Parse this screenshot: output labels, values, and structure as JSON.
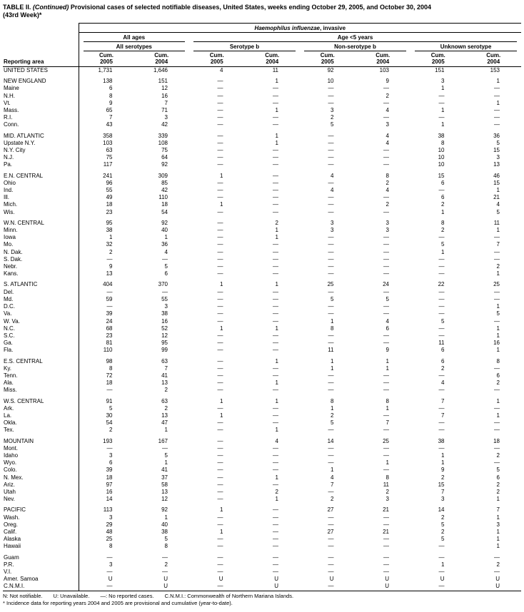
{
  "title": {
    "label": "TABLE II.",
    "continued": " (Continued) ",
    "rest": "Provisional cases of selected notifiable diseases, United States, weeks ending October 29, 2005, and October 30, 2004",
    "week": "(43rd Week)*"
  },
  "header": {
    "stub_label": "Reporting area",
    "disease_italic": "Haemophilus influenzae",
    "disease_rest": ", invasive",
    "all_ages": "All ages",
    "age_lt5": "Age <5 years",
    "all_serotypes": "All serotypes",
    "serotype_b": "Serotype b",
    "non_serotype_b": "Non-serotype b",
    "unknown_serotype": "Unknown serotype",
    "cum_label": "Cum.",
    "years": [
      "2005",
      "2004",
      "2005",
      "2004",
      "2005",
      "2004",
      "2005",
      "2004"
    ]
  },
  "table": {
    "groups": [
      {
        "rows": [
          [
            "UNITED STATES",
            "1,731",
            "1,646",
            "4",
            "11",
            "92",
            "103",
            "151",
            "153"
          ]
        ]
      },
      {
        "rows": [
          [
            "NEW ENGLAND",
            "138",
            "151",
            "—",
            "1",
            "10",
            "9",
            "3",
            "1"
          ],
          [
            "Maine",
            "6",
            "12",
            "—",
            "—",
            "—",
            "—",
            "1",
            "—"
          ],
          [
            "N.H.",
            "8",
            "16",
            "—",
            "—",
            "—",
            "2",
            "—",
            "—"
          ],
          [
            "Vt.",
            "9",
            "7",
            "—",
            "—",
            "—",
            "—",
            "—",
            "1"
          ],
          [
            "Mass.",
            "65",
            "71",
            "—",
            "1",
            "3",
            "4",
            "1",
            "—"
          ],
          [
            "R.I.",
            "7",
            "3",
            "—",
            "—",
            "2",
            "—",
            "—",
            "—"
          ],
          [
            "Conn.",
            "43",
            "42",
            "—",
            "—",
            "5",
            "3",
            "1",
            "—"
          ]
        ]
      },
      {
        "rows": [
          [
            "MID. ATLANTIC",
            "358",
            "339",
            "—",
            "1",
            "—",
            "4",
            "38",
            "36"
          ],
          [
            "Upstate N.Y.",
            "103",
            "108",
            "—",
            "1",
            "—",
            "4",
            "8",
            "5"
          ],
          [
            "N.Y. City",
            "63",
            "75",
            "—",
            "—",
            "—",
            "—",
            "10",
            "15"
          ],
          [
            "N.J.",
            "75",
            "64",
            "—",
            "—",
            "—",
            "—",
            "10",
            "3"
          ],
          [
            "Pa.",
            "117",
            "92",
            "—",
            "—",
            "—",
            "—",
            "10",
            "13"
          ]
        ]
      },
      {
        "rows": [
          [
            "E.N. CENTRAL",
            "241",
            "309",
            "1",
            "—",
            "4",
            "8",
            "15",
            "46"
          ],
          [
            "Ohio",
            "96",
            "85",
            "—",
            "—",
            "—",
            "2",
            "6",
            "15"
          ],
          [
            "Ind.",
            "55",
            "42",
            "—",
            "—",
            "4",
            "4",
            "—",
            "1"
          ],
          [
            "Ill.",
            "49",
            "110",
            "—",
            "—",
            "—",
            "—",
            "6",
            "21"
          ],
          [
            "Mich.",
            "18",
            "18",
            "1",
            "—",
            "—",
            "2",
            "2",
            "4"
          ],
          [
            "Wis.",
            "23",
            "54",
            "—",
            "—",
            "—",
            "—",
            "1",
            "5"
          ]
        ]
      },
      {
        "rows": [
          [
            "W.N. CENTRAL",
            "95",
            "92",
            "—",
            "2",
            "3",
            "3",
            "8",
            "11"
          ],
          [
            "Minn.",
            "38",
            "40",
            "—",
            "1",
            "3",
            "3",
            "2",
            "1"
          ],
          [
            "Iowa",
            "1",
            "1",
            "—",
            "1",
            "—",
            "—",
            "—",
            "—"
          ],
          [
            "Mo.",
            "32",
            "36",
            "—",
            "—",
            "—",
            "—",
            "5",
            "7"
          ],
          [
            "N. Dak.",
            "2",
            "4",
            "—",
            "—",
            "—",
            "—",
            "1",
            "—"
          ],
          [
            "S. Dak.",
            "—",
            "—",
            "—",
            "—",
            "—",
            "—",
            "—",
            "—"
          ],
          [
            "Nebr.",
            "9",
            "5",
            "—",
            "—",
            "—",
            "—",
            "—",
            "2"
          ],
          [
            "Kans.",
            "13",
            "6",
            "—",
            "—",
            "—",
            "—",
            "—",
            "1"
          ]
        ]
      },
      {
        "rows": [
          [
            "S. ATLANTIC",
            "404",
            "370",
            "1",
            "1",
            "25",
            "24",
            "22",
            "25"
          ],
          [
            "Del.",
            "—",
            "—",
            "—",
            "—",
            "—",
            "—",
            "—",
            "—"
          ],
          [
            "Md.",
            "59",
            "55",
            "—",
            "—",
            "5",
            "5",
            "—",
            "—"
          ],
          [
            "D.C.",
            "—",
            "3",
            "—",
            "—",
            "—",
            "—",
            "—",
            "1"
          ],
          [
            "Va.",
            "39",
            "38",
            "—",
            "—",
            "—",
            "—",
            "—",
            "5"
          ],
          [
            "W. Va.",
            "24",
            "16",
            "—",
            "—",
            "1",
            "4",
            "5",
            "—"
          ],
          [
            "N.C.",
            "68",
            "52",
            "1",
            "1",
            "8",
            "6",
            "—",
            "1"
          ],
          [
            "S.C.",
            "23",
            "12",
            "—",
            "—",
            "—",
            "—",
            "—",
            "1"
          ],
          [
            "Ga.",
            "81",
            "95",
            "—",
            "—",
            "—",
            "—",
            "11",
            "16"
          ],
          [
            "Fla.",
            "110",
            "99",
            "—",
            "—",
            "11",
            "9",
            "6",
            "1"
          ]
        ]
      },
      {
        "rows": [
          [
            "E.S. CENTRAL",
            "98",
            "63",
            "—",
            "1",
            "1",
            "1",
            "6",
            "8"
          ],
          [
            "Ky.",
            "8",
            "7",
            "—",
            "—",
            "1",
            "1",
            "2",
            "—"
          ],
          [
            "Tenn.",
            "72",
            "41",
            "—",
            "—",
            "—",
            "—",
            "—",
            "6"
          ],
          [
            "Ala.",
            "18",
            "13",
            "—",
            "1",
            "—",
            "—",
            "4",
            "2"
          ],
          [
            "Miss.",
            "—",
            "2",
            "—",
            "—",
            "—",
            "—",
            "—",
            "—"
          ]
        ]
      },
      {
        "rows": [
          [
            "W.S. CENTRAL",
            "91",
            "63",
            "1",
            "1",
            "8",
            "8",
            "7",
            "1"
          ],
          [
            "Ark.",
            "5",
            "2",
            "—",
            "—",
            "1",
            "1",
            "—",
            "—"
          ],
          [
            "La.",
            "30",
            "13",
            "1",
            "—",
            "2",
            "—",
            "7",
            "1"
          ],
          [
            "Okla.",
            "54",
            "47",
            "—",
            "—",
            "5",
            "7",
            "—",
            "—"
          ],
          [
            "Tex.",
            "2",
            "1",
            "—",
            "1",
            "—",
            "—",
            "—",
            "—"
          ]
        ]
      },
      {
        "rows": [
          [
            "MOUNTAIN",
            "193",
            "167",
            "—",
            "4",
            "14",
            "25",
            "38",
            "18"
          ],
          [
            "Mont.",
            "—",
            "—",
            "—",
            "—",
            "—",
            "—",
            "—",
            "—"
          ],
          [
            "Idaho",
            "3",
            "5",
            "—",
            "—",
            "—",
            "—",
            "1",
            "2"
          ],
          [
            "Wyo.",
            "6",
            "1",
            "—",
            "—",
            "—",
            "1",
            "1",
            "—"
          ],
          [
            "Colo.",
            "39",
            "41",
            "—",
            "—",
            "1",
            "—",
            "9",
            "5"
          ],
          [
            "N. Mex.",
            "18",
            "37",
            "—",
            "1",
            "4",
            "8",
            "2",
            "6"
          ],
          [
            "Ariz.",
            "97",
            "58",
            "—",
            "—",
            "7",
            "11",
            "15",
            "2"
          ],
          [
            "Utah",
            "16",
            "13",
            "—",
            "2",
            "—",
            "2",
            "7",
            "2"
          ],
          [
            "Nev.",
            "14",
            "12",
            "—",
            "1",
            "2",
            "3",
            "3",
            "1"
          ]
        ]
      },
      {
        "rows": [
          [
            "PACIFIC",
            "113",
            "92",
            "1",
            "—",
            "27",
            "21",
            "14",
            "7"
          ],
          [
            "Wash.",
            "3",
            "1",
            "—",
            "—",
            "—",
            "—",
            "2",
            "1"
          ],
          [
            "Oreg.",
            "29",
            "40",
            "—",
            "—",
            "—",
            "—",
            "5",
            "3"
          ],
          [
            "Calif.",
            "48",
            "38",
            "1",
            "—",
            "27",
            "21",
            "2",
            "1"
          ],
          [
            "Alaska",
            "25",
            "5",
            "—",
            "—",
            "—",
            "—",
            "5",
            "1"
          ],
          [
            "Hawaii",
            "8",
            "8",
            "—",
            "—",
            "—",
            "—",
            "—",
            "1"
          ]
        ]
      },
      {
        "rows": [
          [
            "Guam",
            "—",
            "—",
            "—",
            "—",
            "—",
            "—",
            "—",
            "—"
          ],
          [
            "P.R.",
            "3",
            "2",
            "—",
            "—",
            "—",
            "—",
            "1",
            "2"
          ],
          [
            "V.I.",
            "—",
            "—",
            "—",
            "—",
            "—",
            "—",
            "—",
            "—"
          ],
          [
            "Amer. Samoa",
            "U",
            "U",
            "U",
            "U",
            "U",
            "U",
            "U",
            "U"
          ],
          [
            "C.N.M.I.",
            "—",
            "U",
            "—",
            "U",
            "—",
            "U",
            "—",
            "U"
          ]
        ]
      }
    ]
  },
  "footnotes": {
    "n": "N: Not notifiable.",
    "u": "U: Unavailable.",
    "dash": "—: No reported cases.",
    "cnmi": "C.N.M.I.: Commonwealth of Northern Mariana Islands.",
    "incidence": "* Incidence data for reporting years 2004 and 2005 are provisional and cumulative (year-to-date)."
  }
}
